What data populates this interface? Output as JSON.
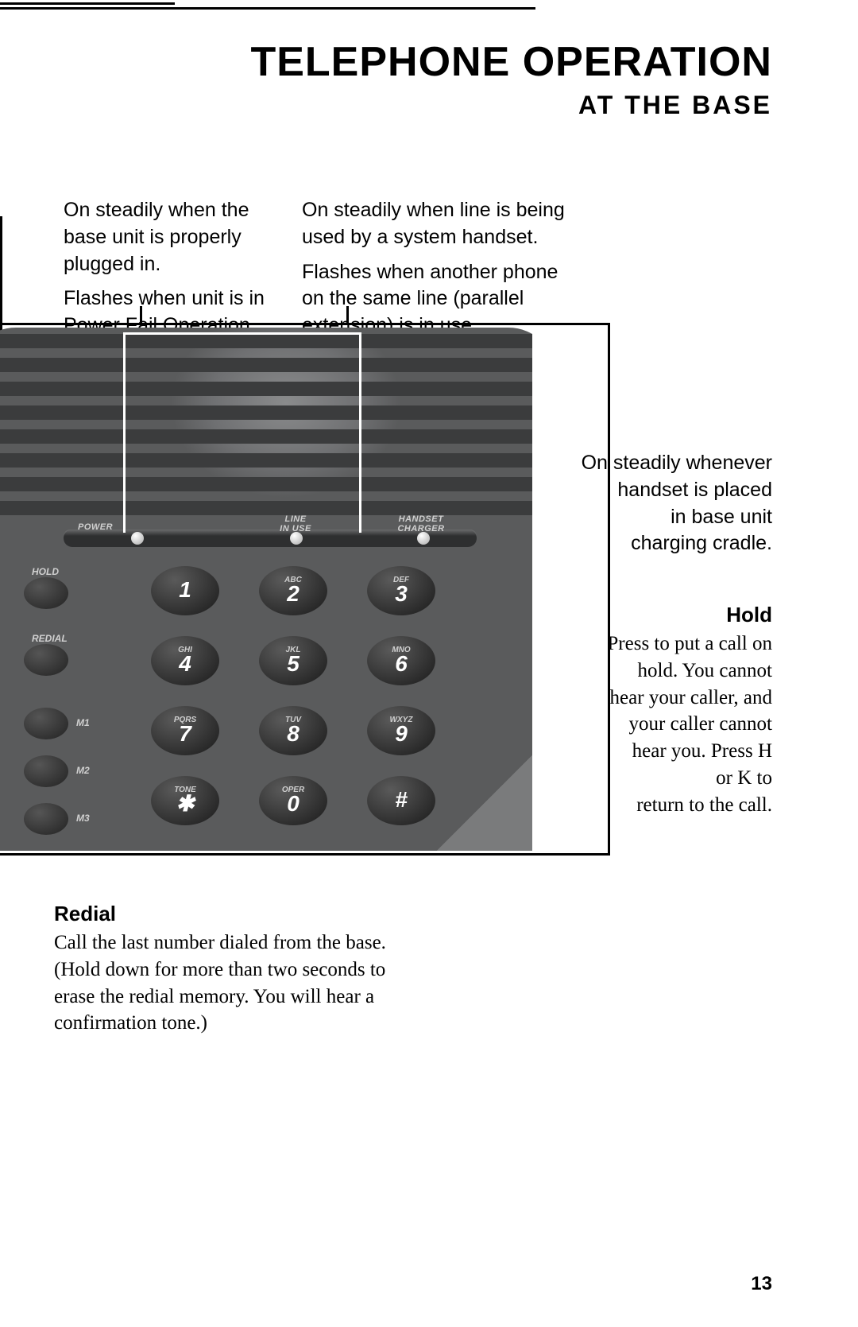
{
  "page": {
    "number": "13"
  },
  "title": {
    "main": "TELEPHONE OPERATION",
    "sub": "AT THE BASE"
  },
  "callouts": {
    "power": {
      "p1": "On steadily when the base unit is properly plugged in.",
      "p2": "Flashes when unit is in Power Fail Operation."
    },
    "line": {
      "p1": "On steadily when line is being used by a system handset.",
      "p2": "Flashes when another phone on the same line (parallel extension) is in use."
    },
    "charger": {
      "l1": "On steadily whenever",
      "l2": "handset is placed",
      "l3": "in base unit",
      "l4": "charging cradle."
    },
    "hold": {
      "title": "Hold",
      "l1": "Press to put a call on",
      "l2": "hold. You cannot",
      "l3": "hear your caller, and",
      "l4": "your caller cannot",
      "l5": "hear you.  Press H",
      "l6": "or K            to",
      "l7": "return to the call."
    },
    "redial": {
      "title": "Redial",
      "body": "Call the last number dialed from the base.  (Hold down for more than two seconds to erase the redial memory.  You will hear a confirmation tone.)"
    }
  },
  "phone": {
    "body_color": "#5a5b5c",
    "slat_color": "#3b3c3d",
    "slat_tops": [
      8,
      38,
      68,
      98,
      128,
      158,
      188,
      218
    ],
    "leds": {
      "power": {
        "label": "POWER"
      },
      "line": {
        "label1": "LINE",
        "label2": "IN USE"
      },
      "charger": {
        "label1": "HANDSET",
        "label2": "CHARGER"
      }
    },
    "side_buttons": {
      "hold": "HOLD",
      "redial": "REDIAL",
      "m1": "M1",
      "m2": "M2",
      "m3": "M3"
    },
    "keypad": [
      {
        "num": "1",
        "sup": ""
      },
      {
        "num": "2",
        "sup": "ABC"
      },
      {
        "num": "3",
        "sup": "DEF"
      },
      {
        "num": "4",
        "sup": "GHI"
      },
      {
        "num": "5",
        "sup": "JKL"
      },
      {
        "num": "6",
        "sup": "MNO"
      },
      {
        "num": "7",
        "sup": "PQRS"
      },
      {
        "num": "8",
        "sup": "TUV"
      },
      {
        "num": "9",
        "sup": "WXYZ"
      },
      {
        "num": "✱",
        "sup": "TONE"
      },
      {
        "num": "0",
        "sup": "OPER"
      },
      {
        "num": "#",
        "sup": ""
      }
    ]
  }
}
